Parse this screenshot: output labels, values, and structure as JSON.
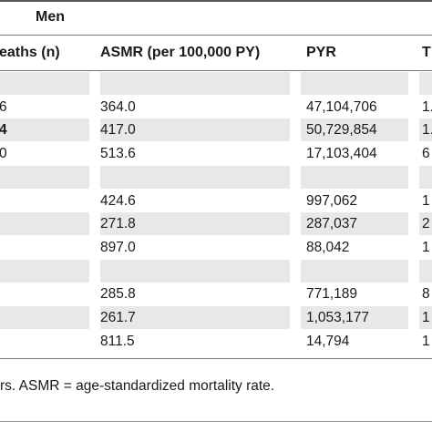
{
  "table": {
    "group_header": "Men",
    "columns": {
      "deaths": "eaths (n)",
      "asmr": "ASMR (per 100,000 PY)",
      "pyr": "PYR",
      "next": "T"
    },
    "rows": [
      {
        "type": "section",
        "deaths": "",
        "asmr": "",
        "pyr": "",
        "next": ""
      },
      {
        "type": "data",
        "deaths": "6",
        "asmr": "364.0",
        "pyr": "47,104,706",
        "next": "1.",
        "deaths_bold": false
      },
      {
        "type": "data",
        "deaths": "4",
        "asmr": "417.0",
        "pyr": "50,729,854",
        "next": "1.",
        "deaths_bold": true
      },
      {
        "type": "data",
        "deaths": "0",
        "asmr": "513.6",
        "pyr": "17,103,404",
        "next": "6",
        "deaths_bold": false
      },
      {
        "type": "section",
        "deaths": "",
        "asmr": "",
        "pyr": "",
        "next": ""
      },
      {
        "type": "data",
        "deaths": "",
        "asmr": "424.6",
        "pyr": "997,062",
        "next": "1",
        "deaths_bold": false
      },
      {
        "type": "data",
        "deaths": "",
        "asmr": "271.8",
        "pyr": "287,037",
        "next": "2",
        "deaths_bold": false
      },
      {
        "type": "data",
        "deaths": "",
        "asmr": "897.0",
        "pyr": "88,042",
        "next": "1",
        "deaths_bold": false
      },
      {
        "type": "section",
        "deaths": "",
        "asmr": "",
        "pyr": "",
        "next": ""
      },
      {
        "type": "data",
        "deaths": "",
        "asmr": "285.8",
        "pyr": "771,189",
        "next": "8",
        "deaths_bold": false
      },
      {
        "type": "data",
        "deaths": "",
        "asmr": "261.7",
        "pyr": "1,053,177",
        "next": "1",
        "deaths_bold": false
      },
      {
        "type": "data",
        "deaths": "",
        "asmr": "811.5",
        "pyr": "14,794",
        "next": "1",
        "deaths_bold": false
      }
    ]
  },
  "footnote": "rs. ASMR = age-standardized mortality rate."
}
